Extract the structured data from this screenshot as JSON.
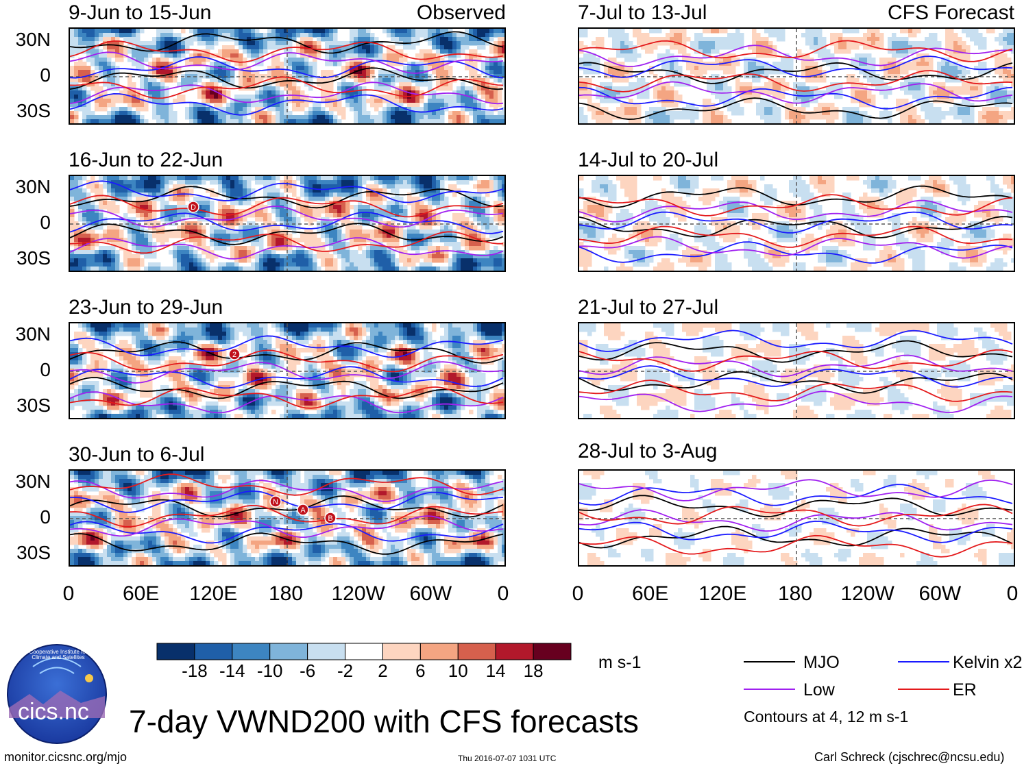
{
  "chart_data": {
    "type": "heatmap",
    "title": "7-day VWND200 with CFS forecasts",
    "units": "m s-1",
    "observed_label": "Observed",
    "forecast_label": "CFS Forecast",
    "lat_ticks": [
      "30N",
      "0",
      "30S"
    ],
    "lon_ticks": [
      "0",
      "60E",
      "120E",
      "180",
      "120W",
      "60W",
      "0"
    ],
    "colorbar": {
      "ticks": [
        "-18",
        "-14",
        "-10",
        "-6",
        "-2",
        "2",
        "6",
        "10",
        "14",
        "18"
      ],
      "colors": [
        "#08306b",
        "#1f5fa8",
        "#3d85c1",
        "#7fb4da",
        "#c8dff0",
        "#ffffff",
        "#fdd5c0",
        "#f4a582",
        "#d6604d",
        "#b2182b",
        "#67001f"
      ]
    },
    "panels": [
      {
        "column": "observed",
        "label": "9-Jun to 15-Jun",
        "intensity": 1.0,
        "storm_labels": []
      },
      {
        "column": "observed",
        "label": "16-Jun to 22-Jun",
        "intensity": 1.0,
        "storm_labels": [
          "D"
        ]
      },
      {
        "column": "observed",
        "label": "23-Jun to 29-Jun",
        "intensity": 1.0,
        "storm_labels": [
          "2"
        ]
      },
      {
        "column": "observed",
        "label": "30-Jun to 6-Jul",
        "intensity": 1.0,
        "storm_labels": [
          "N",
          "A",
          "B"
        ]
      },
      {
        "column": "forecast",
        "label": "7-Jul to 13-Jul",
        "intensity": 0.55,
        "storm_labels": []
      },
      {
        "column": "forecast",
        "label": "14-Jul to 20-Jul",
        "intensity": 0.45,
        "storm_labels": []
      },
      {
        "column": "forecast",
        "label": "21-Jul to 27-Jul",
        "intensity": 0.35,
        "storm_labels": []
      },
      {
        "column": "forecast",
        "label": "28-Jul to 3-Aug",
        "intensity": 0.25,
        "storm_labels": []
      }
    ],
    "legend": [
      {
        "name": "MJO",
        "color": "#000000"
      },
      {
        "name": "Kelvin x2",
        "color": "#1a1aff"
      },
      {
        "name": "Low",
        "color": "#a020f0"
      },
      {
        "name": "ER",
        "color": "#e41a1c"
      }
    ],
    "contour_note": "Contours at 4, 12 m s-1"
  },
  "logo": {
    "text": "cics.nc",
    "ring_text": "Cooperative Institute for Climate and Satellites"
  },
  "footer": {
    "left": "monitor.cicsnc.org/mjo",
    "center": "Thu 2016-07-07 1031 UTC",
    "right": "Carl Schreck (cjschrec@ncsu.edu)"
  }
}
